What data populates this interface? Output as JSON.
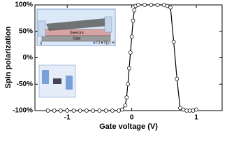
{
  "chart_data": {
    "type": "line",
    "xlabel": "Gate voltage (V)",
    "ylabel": "Spin polarization",
    "xlim": [
      -1.5,
      1.4
    ],
    "ylim": [
      -100,
      100
    ],
    "xticks": [
      -1,
      0,
      1
    ],
    "yticks": [
      {
        "value": -100,
        "label": "-100%"
      },
      {
        "value": -50,
        "label": "-50%"
      },
      {
        "value": 0,
        "label": "0%"
      },
      {
        "value": 50,
        "label": "50%"
      },
      {
        "value": 100,
        "label": "100%"
      }
    ],
    "inset_labels": {
      "layer1": "Dielectric",
      "layer2": "Gate",
      "source": "S",
      "drain": "D",
      "atom1": "Cr",
      "atom2": "C",
      "atom3": "H"
    },
    "x": [
      -1.3,
      -1.2,
      -1.1,
      -1.0,
      -0.9,
      -0.8,
      -0.7,
      -0.6,
      -0.5,
      -0.4,
      -0.3,
      -0.2,
      -0.15,
      -0.1,
      -0.08,
      -0.06,
      -0.04,
      -0.02,
      0,
      0.02,
      0.04,
      0.06,
      0.1,
      0.2,
      0.3,
      0.4,
      0.5,
      0.55,
      0.6,
      0.65,
      0.7,
      0.75,
      0.8,
      0.85,
      0.9,
      0.95,
      1.0
    ],
    "series": [
      {
        "name": "Spin polarization",
        "color": "#000000",
        "values": [
          -100,
          -100,
          -100,
          -100,
          -100,
          -100,
          -100,
          -100,
          -100,
          -100,
          -100,
          -100,
          -98,
          -90,
          -75,
          -50,
          -20,
          10,
          40,
          70,
          90,
          98,
          100,
          100,
          100,
          100,
          100,
          98,
          95,
          30,
          -40,
          -95,
          -98,
          -100,
          -100,
          -100,
          -98
        ]
      }
    ]
  }
}
